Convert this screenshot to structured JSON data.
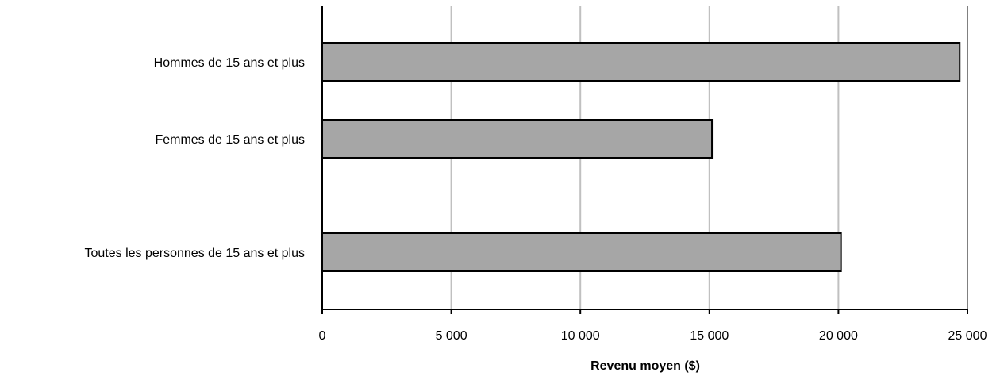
{
  "chart_data": {
    "type": "bar",
    "orientation": "horizontal",
    "categories": [
      "Hommes de 15 ans et plus",
      "Femmes de 15 ans et plus",
      "Toutes les personnes de 15 ans et plus"
    ],
    "values": [
      24700,
      15100,
      20100
    ],
    "title": "",
    "xlabel": "Revenu moyen ($)",
    "ylabel": "",
    "xlim": [
      0,
      25000
    ],
    "xticks": [
      0,
      5000,
      10000,
      15000,
      20000,
      25000
    ],
    "xtick_labels": [
      "0",
      "5 000",
      "10 000",
      "15 000",
      "20 000",
      "25 000"
    ],
    "grid": "vertical",
    "legend": "none",
    "bar_color": "#a6a6a6",
    "bar_edge_color": "#000000",
    "grid_color": "#c0c0c0"
  }
}
